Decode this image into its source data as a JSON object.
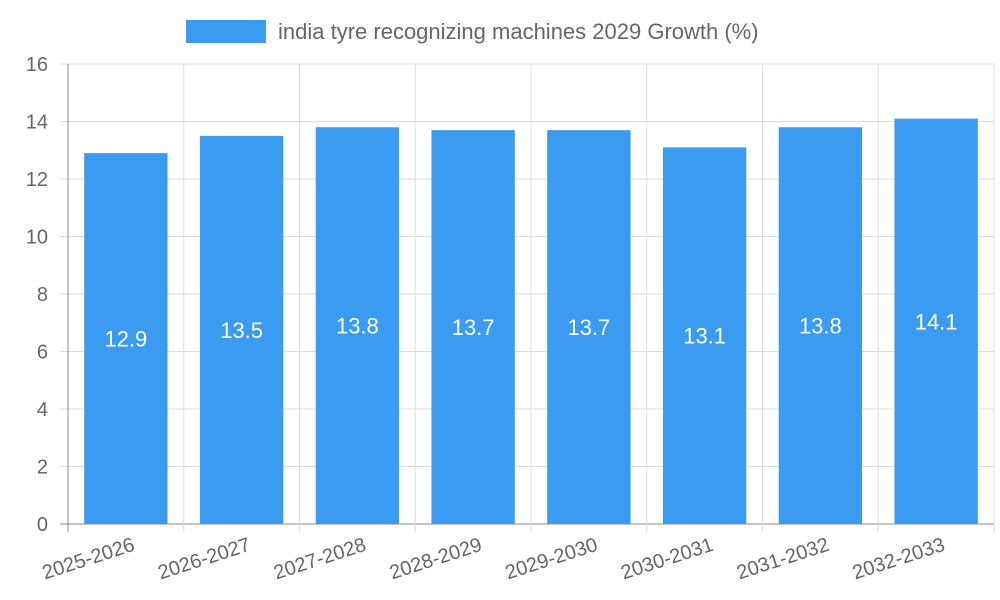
{
  "chart_data": {
    "type": "bar",
    "title": "",
    "xlabel": "",
    "ylabel": "",
    "ylim": [
      0,
      16
    ],
    "y_ticks": [
      0,
      2,
      4,
      6,
      8,
      10,
      12,
      14,
      16
    ],
    "grid": true,
    "legend_position": "top-center",
    "categories": [
      "2025-2026",
      "2026-2027",
      "2027-2028",
      "2028-2029",
      "2029-2030",
      "2030-2031",
      "2031-2032",
      "2032-2033"
    ],
    "series": [
      {
        "name": "india tyre recognizing machines 2029 Growth (%)",
        "color": "#3a9bf0",
        "values": [
          12.9,
          13.5,
          13.8,
          13.7,
          13.7,
          13.1,
          13.8,
          14.1
        ],
        "labels": [
          "12.9",
          "13.5",
          "13.8",
          "13.7",
          "13.7",
          "13.1",
          "13.8",
          "14.1"
        ]
      }
    ]
  }
}
